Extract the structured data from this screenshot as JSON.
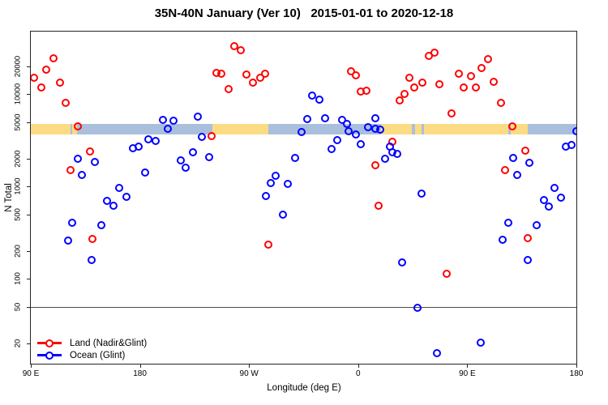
{
  "chart_data": {
    "type": "scatter",
    "title": "35N-40N January (Ver 10)   2015-01-01 to 2020-12-18",
    "xlabel": "Longitude (deg E)",
    "ylabel": "N Total",
    "x_axis": {
      "unit": "deg E",
      "range_deg": [
        90,
        540
      ],
      "wraps_past_180": true,
      "ticks": [
        {
          "deg": 90,
          "label": "90 E"
        },
        {
          "deg": 180,
          "label": "180"
        },
        {
          "deg": 270,
          "label": "90 W"
        },
        {
          "deg": 360,
          "label": "0"
        },
        {
          "deg": 450,
          "label": "90 E"
        },
        {
          "deg": 540,
          "label": "180"
        }
      ]
    },
    "y_axis": {
      "scale": "log",
      "range": [
        12,
        48000
      ],
      "ticks": [
        {
          "value": 20,
          "label": "20"
        },
        {
          "value": 50,
          "label": "50"
        },
        {
          "value": 100,
          "label": "100"
        },
        {
          "value": 200,
          "label": "200"
        },
        {
          "value": 500,
          "label": "500"
        },
        {
          "value": 1000,
          "label": "1000"
        },
        {
          "value": 2000,
          "label": "2000"
        },
        {
          "value": 5000,
          "label": "5000"
        },
        {
          "value": 10000,
          "label": "10000"
        },
        {
          "value": 20000,
          "label": "20000"
        }
      ]
    },
    "grid": false,
    "legend_position": "bottom-left",
    "reference_line_y": 50,
    "surface_band": {
      "y_top_value": 4800,
      "y_bottom_value": 3700,
      "land_color": "#FBDB84",
      "ocean_color": "#AABFDC",
      "segments": [
        {
          "from": 90,
          "to": 123,
          "surface": "land"
        },
        {
          "from": 123,
          "to": 240,
          "surface": "ocean"
        },
        {
          "from": 240,
          "to": 286,
          "surface": "land"
        },
        {
          "from": 286,
          "to": 379,
          "surface": "ocean"
        },
        {
          "from": 379,
          "to": 500,
          "surface": "land"
        },
        {
          "from": 500,
          "to": 540,
          "surface": "ocean"
        },
        {
          "from": 124,
          "to": 128,
          "surface": "land"
        },
        {
          "from": 404,
          "to": 407,
          "surface": "ocean"
        },
        {
          "from": 412,
          "to": 414,
          "surface": "ocean"
        },
        {
          "from": 484,
          "to": 486,
          "surface": "ocean"
        }
      ]
    },
    "series": [
      {
        "name": "Land (Nadir&Glint)",
        "color": "#FF0000",
        "marker": "open-circle",
        "points": [
          [
            109,
            24500
          ],
          [
            103,
            18400
          ],
          [
            93,
            15100
          ],
          [
            99,
            11800
          ],
          [
            114,
            13400
          ],
          [
            119,
            8060
          ],
          [
            129,
            4490
          ],
          [
            139,
            2400
          ],
          [
            123,
            1510
          ],
          [
            141,
            270
          ],
          [
            243,
            17000
          ],
          [
            247,
            16700
          ],
          [
            239,
            3520
          ],
          [
            258,
            33200
          ],
          [
            263,
            29900
          ],
          [
            268,
            16300
          ],
          [
            283,
            16700
          ],
          [
            279,
            15100
          ],
          [
            273,
            13400
          ],
          [
            253,
            11400
          ],
          [
            286,
            236
          ],
          [
            354,
            17700
          ],
          [
            358,
            16000
          ],
          [
            362,
            10700
          ],
          [
            367,
            10900
          ],
          [
            402,
            15100
          ],
          [
            406,
            11800
          ],
          [
            398,
            10100
          ],
          [
            394,
            8570
          ],
          [
            388,
            3060
          ],
          [
            374,
            1700
          ],
          [
            377,
            620
          ],
          [
            418,
            26100
          ],
          [
            423,
            28300
          ],
          [
            467,
            24000
          ],
          [
            462,
            19200
          ],
          [
            443,
            16700
          ],
          [
            453,
            15700
          ],
          [
            447,
            11800
          ],
          [
            457,
            11800
          ],
          [
            472,
            13600
          ],
          [
            413,
            13400
          ],
          [
            427,
            12800
          ],
          [
            478,
            8060
          ],
          [
            437,
            6200
          ],
          [
            487,
            4490
          ],
          [
            481,
            1510
          ],
          [
            433,
            114
          ],
          [
            498,
            2450
          ],
          [
            500,
            276
          ]
        ]
      },
      {
        "name": "Ocean (Glint)",
        "color": "#0000FF",
        "marker": "open-circle",
        "points": [
          [
            129,
            2000
          ],
          [
            143,
            1840
          ],
          [
            132,
            1330
          ],
          [
            163,
            966
          ],
          [
            153,
            700
          ],
          [
            158,
            620
          ],
          [
            124,
            406
          ],
          [
            148,
            382
          ],
          [
            121,
            260
          ],
          [
            140,
            160
          ],
          [
            199,
            5290
          ],
          [
            208,
            5160
          ],
          [
            228,
            5720
          ],
          [
            203,
            4230
          ],
          [
            187,
            3250
          ],
          [
            193,
            3120
          ],
          [
            174,
            2610
          ],
          [
            179,
            2710
          ],
          [
            231,
            3450
          ],
          [
            224,
            2350
          ],
          [
            237,
            2080
          ],
          [
            214,
            1920
          ],
          [
            218,
            1600
          ],
          [
            184,
            1420
          ],
          [
            169,
            775
          ],
          [
            322,
            9660
          ],
          [
            328,
            8730
          ],
          [
            318,
            5380
          ],
          [
            313,
            3890
          ],
          [
            308,
            2040
          ],
          [
            292,
            1310
          ],
          [
            288,
            1090
          ],
          [
            302,
            1070
          ],
          [
            284,
            790
          ],
          [
            298,
            497
          ],
          [
            333,
            5500
          ],
          [
            347,
            5270
          ],
          [
            351,
            4770
          ],
          [
            352,
            3970
          ],
          [
            358,
            3670
          ],
          [
            368,
            4400
          ],
          [
            374,
            5500
          ],
          [
            374,
            4230
          ],
          [
            378,
            4140
          ],
          [
            362,
            2880
          ],
          [
            343,
            3180
          ],
          [
            338,
            2550
          ],
          [
            386,
            2710
          ],
          [
            388,
            2350
          ],
          [
            392,
            2260
          ],
          [
            382,
            2000
          ],
          [
            396,
            151
          ],
          [
            409,
            49
          ],
          [
            412,
            840
          ],
          [
            484,
            406
          ],
          [
            479,
            266
          ],
          [
            461,
            20.4
          ],
          [
            425,
            15.7
          ],
          [
            531,
            2710
          ],
          [
            536,
            2820
          ],
          [
            488,
            2040
          ],
          [
            501,
            1810
          ],
          [
            491,
            1330
          ],
          [
            522,
            966
          ],
          [
            527,
            759
          ],
          [
            513,
            715
          ],
          [
            517,
            607
          ],
          [
            507,
            382
          ],
          [
            500,
            160
          ],
          [
            540,
            3970
          ]
        ]
      }
    ]
  }
}
